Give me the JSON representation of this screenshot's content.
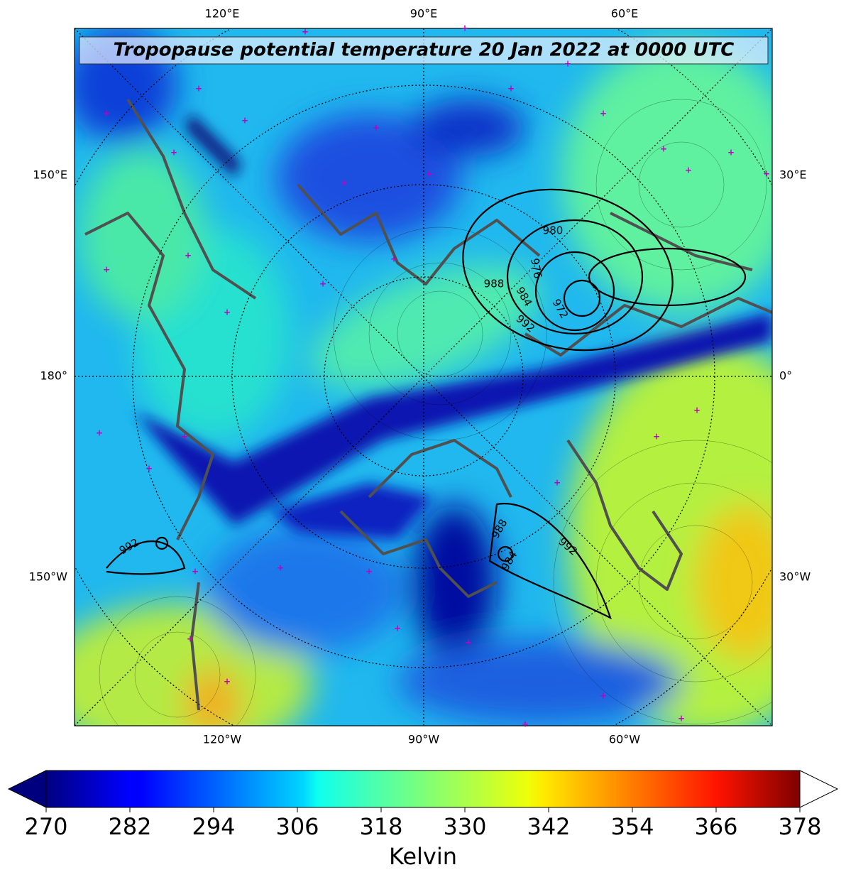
{
  "title": "Tropopause potential temperature 20 Jan 2022 at 0000 UTC",
  "map": {
    "top_labels": [
      "120°E",
      "90°E",
      "60°E"
    ],
    "bottom_labels": [
      "120°W",
      "90°W",
      "60°W"
    ],
    "left_labels": [
      "150°E",
      "180°",
      "150°W"
    ],
    "right_labels": [
      "30°E",
      "0°",
      "30°W"
    ],
    "contour_labels": [
      980,
      976,
      988,
      984,
      972,
      992,
      992,
      988,
      992,
      984
    ]
  },
  "colorbar": {
    "label": "Kelvin",
    "colormap": "jet",
    "lim": [
      270,
      378
    ],
    "ticks": [
      270,
      282,
      294,
      306,
      318,
      330,
      342,
      354,
      366,
      378
    ],
    "extend": "both"
  }
}
